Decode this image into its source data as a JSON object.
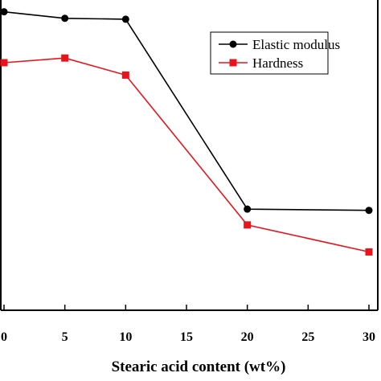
{
  "chart_data": {
    "type": "line",
    "xlabel": "Stearic acid content (wt%)",
    "ylabel": "",
    "x_ticks": [
      0,
      5,
      10,
      15,
      20,
      25,
      30
    ],
    "xlim": [
      0,
      30
    ],
    "ylim": [
      0,
      1
    ],
    "y_axis_labeled": false,
    "grid": false,
    "legend_position": "top-right",
    "series": [
      {
        "name": "Elastic modulus",
        "color": "#000000",
        "marker": "circle",
        "x": [
          0,
          5,
          10,
          20,
          30
        ],
        "y": [
          0.962,
          0.941,
          0.938,
          0.326,
          0.322
        ]
      },
      {
        "name": "Hardness",
        "color": "#e8141b",
        "marker": "square",
        "x": [
          0,
          5,
          10,
          20,
          30
        ],
        "y": [
          0.798,
          0.813,
          0.758,
          0.275,
          0.188
        ]
      }
    ]
  }
}
